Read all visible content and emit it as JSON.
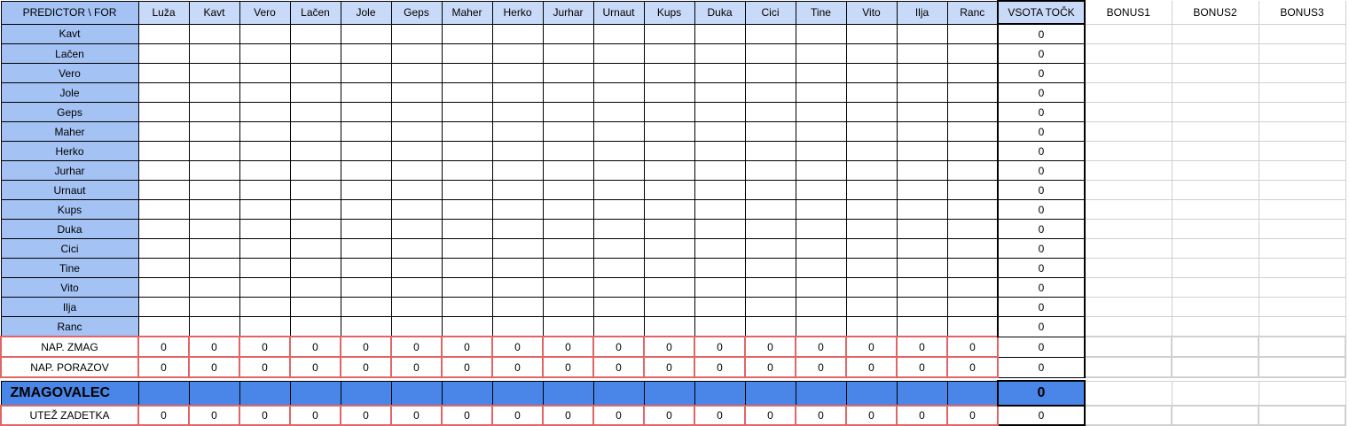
{
  "header": {
    "corner": "PREDICTOR \\ FOR",
    "players": [
      "Luža",
      "Kavt",
      "Vero",
      "Lačen",
      "Jole",
      "Geps",
      "Maher",
      "Herko",
      "Jurhar",
      "Urnaut",
      "Kups",
      "Duka",
      "Cici",
      "Tine",
      "Vito",
      "Ilja",
      "Ranc"
    ],
    "sum": "VSOTA TOČK",
    "bonus": [
      "BONUS1",
      "BONUS2",
      "BONUS3"
    ]
  },
  "rows": [
    {
      "label": "Kavt",
      "sum": "0"
    },
    {
      "label": "Lačen",
      "sum": "0"
    },
    {
      "label": "Vero",
      "sum": "0"
    },
    {
      "label": "Jole",
      "sum": "0"
    },
    {
      "label": "Geps",
      "sum": "0"
    },
    {
      "label": "Maher",
      "sum": "0"
    },
    {
      "label": "Herko",
      "sum": "0"
    },
    {
      "label": "Jurhar",
      "sum": "0"
    },
    {
      "label": "Urnaut",
      "sum": "0"
    },
    {
      "label": "Kups",
      "sum": "0"
    },
    {
      "label": "Duka",
      "sum": "0"
    },
    {
      "label": "Cici",
      "sum": "0"
    },
    {
      "label": "Tine",
      "sum": "0"
    },
    {
      "label": "Vito",
      "sum": "0"
    },
    {
      "label": "Ilja",
      "sum": "0"
    },
    {
      "label": "Ranc",
      "sum": "0"
    }
  ],
  "nap_zmag": {
    "label": "NAP. ZMAG",
    "values": [
      "0",
      "0",
      "0",
      "0",
      "0",
      "0",
      "0",
      "0",
      "0",
      "0",
      "0",
      "0",
      "0",
      "0",
      "0",
      "0",
      "0"
    ],
    "sum": "0"
  },
  "nap_porazov": {
    "label": "NAP. PORAZOV",
    "values": [
      "0",
      "0",
      "0",
      "0",
      "0",
      "0",
      "0",
      "0",
      "0",
      "0",
      "0",
      "0",
      "0",
      "0",
      "0",
      "0",
      "0"
    ],
    "sum": "0"
  },
  "winner": {
    "label": "ZMAGOVALEC",
    "sum": "0"
  },
  "utez": {
    "label": "UTEŽ ZADETKA",
    "values": [
      "0",
      "0",
      "0",
      "0",
      "0",
      "0",
      "0",
      "0",
      "0",
      "0",
      "0",
      "0",
      "0",
      "0",
      "0",
      "0",
      "0"
    ],
    "sum": "0"
  },
  "colors": {
    "header_bg": "#c9daf8",
    "label_bg": "#a4c2f4",
    "winner_bg": "#4a86e8",
    "red_border": "#e06666"
  }
}
